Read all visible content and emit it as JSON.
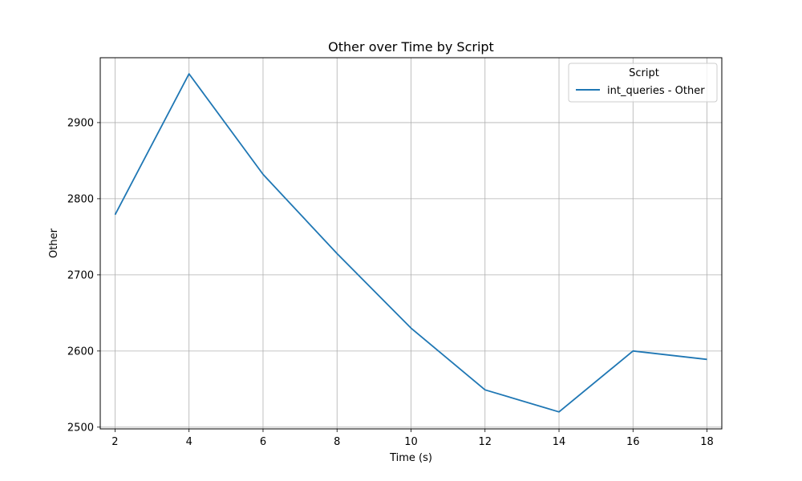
{
  "chart_data": {
    "type": "line",
    "title": "Other over Time by Script",
    "xlabel": "Time (s)",
    "ylabel": "Other",
    "xlim": [
      1.6,
      18.4
    ],
    "ylim": [
      2497.7,
      2985.2
    ],
    "x_ticks": [
      2,
      4,
      6,
      8,
      10,
      12,
      14,
      16,
      18
    ],
    "y_ticks": [
      2500,
      2600,
      2700,
      2800,
      2900
    ],
    "grid": true,
    "legend": {
      "title": "Script",
      "placement": "top-right"
    },
    "series": [
      {
        "name": "int_queries - Other",
        "color": "#1f77b4",
        "x": [
          2,
          4,
          6,
          8,
          10,
          12,
          14,
          16,
          18
        ],
        "y": [
          2779,
          2964,
          2832,
          2728,
          2630,
          2549,
          2520,
          2600,
          2589
        ]
      }
    ]
  }
}
